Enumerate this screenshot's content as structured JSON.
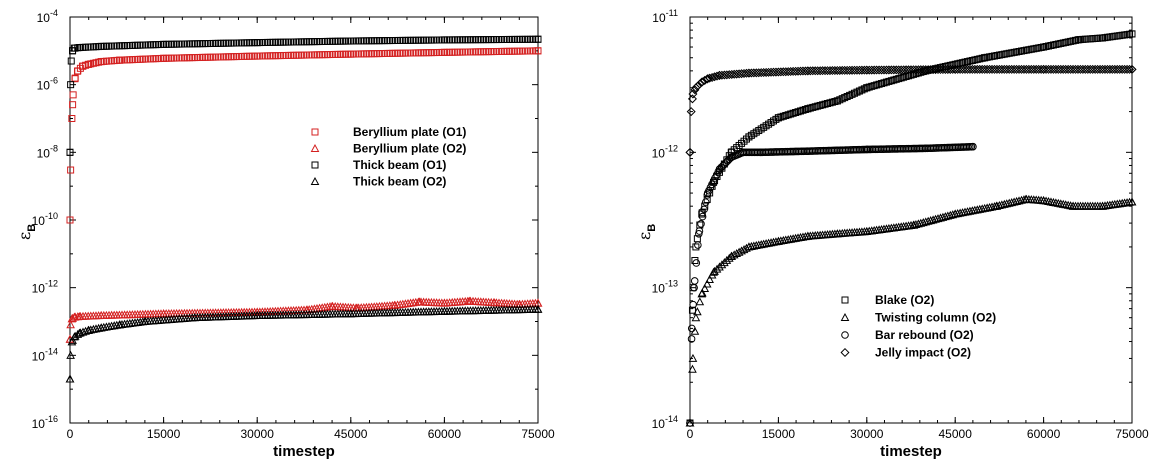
{
  "chart_data": [
    {
      "type": "scatter",
      "yscale": "log",
      "xlabel": "timestep",
      "ylabel": "ε",
      "ylabel_subscript": "B",
      "xlim": [
        0,
        75000
      ],
      "ylim": [
        1e-16,
        0.0001
      ],
      "xticks": [
        0,
        15000,
        30000,
        45000,
        60000,
        75000
      ],
      "xtick_labels": [
        "0",
        "15000",
        "30000",
        "45000",
        "60000",
        "75000"
      ],
      "yticks_exp": [
        -16,
        -14,
        -12,
        -10,
        -8,
        -6,
        -4
      ],
      "ytick_base": "10",
      "legend_position": "center-right",
      "series": [
        {
          "name": "Beryllium plate (O1)",
          "marker": "square",
          "color": "#d42020",
          "x": [
            0,
            100,
            300,
            500,
            800,
            1200,
            2000,
            3000,
            5000,
            8000,
            15000,
            30000,
            45000,
            60000,
            75000
          ],
          "y": [
            1e-10,
            3e-09,
            1e-07,
            5e-07,
            1.5e-06,
            2.5e-06,
            3.5e-06,
            4e-06,
            4.8e-06,
            5.3e-06,
            6e-06,
            7e-06,
            8e-06,
            9e-06,
            1e-05
          ]
        },
        {
          "name": "Beryllium plate (O2)",
          "marker": "triangle",
          "color": "#d42020",
          "x": [
            0,
            100,
            300,
            700,
            1500,
            5000,
            15000,
            30000,
            38000,
            42000,
            46000,
            52000,
            56000,
            60000,
            64000,
            68000,
            72000,
            75000
          ],
          "y": [
            3e-14,
            8e-14,
            1.2e-13,
            1.35e-13,
            1.4e-13,
            1.5e-13,
            1.7e-13,
            1.9e-13,
            2.2e-13,
            2.8e-13,
            2.5e-13,
            3e-13,
            3.8e-13,
            3.5e-13,
            4e-13,
            3.6e-13,
            3.2e-13,
            3.5e-13
          ]
        },
        {
          "name": "Thick beam (O1)",
          "marker": "square",
          "color": "#000000",
          "x": [
            0,
            100,
            200,
            400,
            700,
            1500,
            5000,
            15000,
            30000,
            45000,
            60000,
            75000
          ],
          "y": [
            1e-08,
            1e-06,
            5e-06,
            1e-05,
            1.2e-05,
            1.25e-05,
            1.35e-05,
            1.55e-05,
            1.75e-05,
            1.95e-05,
            2.1e-05,
            2.2e-05
          ]
        },
        {
          "name": "Thick beam (O2)",
          "marker": "triangle",
          "color": "#000000",
          "x": [
            0,
            100,
            300,
            700,
            1500,
            3000,
            5000,
            8000,
            12000,
            20000,
            30000,
            45000,
            60000,
            75000
          ],
          "y": [
            2e-15,
            1e-14,
            2.5e-14,
            3.5e-14,
            4.5e-14,
            5.5e-14,
            6.5e-14,
            8e-14,
            1e-13,
            1.3e-13,
            1.5e-13,
            1.7e-13,
            2e-13,
            2.3e-13
          ]
        }
      ]
    },
    {
      "type": "scatter",
      "yscale": "log",
      "xlabel": "timestep",
      "ylabel": "ε",
      "ylabel_subscript": "B",
      "xlim": [
        0,
        75000
      ],
      "ylim": [
        1e-14,
        1e-11
      ],
      "xticks": [
        0,
        15000,
        30000,
        45000,
        60000,
        75000
      ],
      "xtick_labels": [
        "0",
        "15000",
        "30000",
        "45000",
        "60000",
        "75000"
      ],
      "yticks_exp": [
        -14,
        -13,
        -12,
        -11
      ],
      "ytick_base": "10",
      "legend_position": "bottom-right",
      "series": [
        {
          "name": "Blake (O2)",
          "marker": "square",
          "color": "#000000",
          "x": [
            0,
            500,
            1000,
            2000,
            4000,
            7000,
            10000,
            15000,
            20000,
            25000,
            30000,
            40000,
            50000,
            60000,
            66000,
            70000,
            75000
          ],
          "y": [
            1e-14,
            1e-13,
            2e-13,
            3.5e-13,
            6e-13,
            1e-12,
            1.3e-12,
            1.8e-12,
            2.1e-12,
            2.4e-12,
            3e-12,
            4e-12,
            5e-12,
            6e-12,
            6.8e-12,
            7e-12,
            7.5e-12
          ]
        },
        {
          "name": "Twisting column (O2)",
          "marker": "triangle",
          "color": "#000000",
          "x": [
            0,
            500,
            1000,
            2000,
            4000,
            7000,
            10000,
            15000,
            20000,
            25000,
            30000,
            38000,
            45000,
            52000,
            57000,
            60000,
            65000,
            70000,
            75000
          ],
          "y": [
            1e-14,
            3e-14,
            6e-14,
            9e-14,
            1.3e-13,
            1.7e-13,
            2e-13,
            2.2e-13,
            2.4e-13,
            2.5e-13,
            2.6e-13,
            2.9e-13,
            3.5e-13,
            4e-13,
            4.5e-13,
            4.4e-13,
            4e-13,
            4e-13,
            4.3e-13
          ]
        },
        {
          "name": "Bar rebound (O2)",
          "marker": "circle",
          "color": "#000000",
          "x": [
            0,
            300,
            700,
            1500,
            3000,
            5000,
            7000,
            9000,
            12000,
            20000,
            30000,
            40000,
            48000
          ],
          "y": [
            1e-14,
            5e-14,
            1e-13,
            2.5e-13,
            5e-13,
            7.5e-13,
            9.2e-13,
            1e-12,
            1e-12,
            1.02e-12,
            1.05e-12,
            1.07e-12,
            1.1e-12
          ]
        },
        {
          "name": "Jelly impact (O2)",
          "marker": "diamond",
          "color": "#000000",
          "x": [
            0,
            200,
            500,
            1000,
            2000,
            3000,
            5000,
            10000,
            20000,
            30000,
            45000,
            60000,
            75000
          ],
          "y": [
            1e-12,
            2e-12,
            2.7e-12,
            3e-12,
            3.3e-12,
            3.5e-12,
            3.7e-12,
            3.85e-12,
            4e-12,
            4.05e-12,
            4.1e-12,
            4.1e-12,
            4.1e-12
          ]
        }
      ]
    }
  ]
}
